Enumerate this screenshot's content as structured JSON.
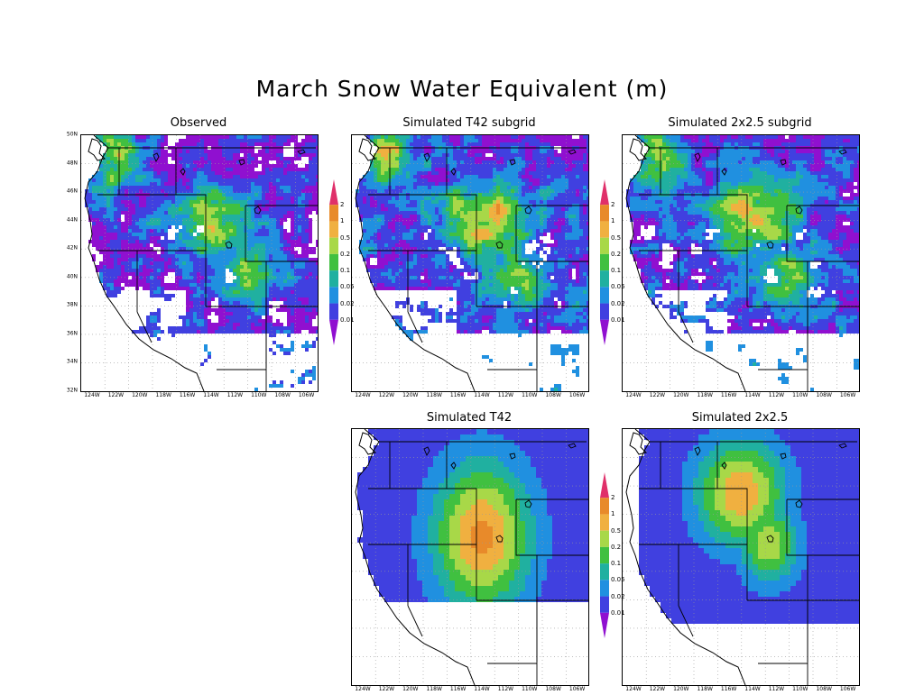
{
  "title": "March Snow Water Equivalent (m)",
  "panels": {
    "observed": {
      "title": "Observed"
    },
    "t42_subgrid": {
      "title": "Simulated T42 subgrid"
    },
    "sub2x25": {
      "title": "Simulated 2x2.5 subgrid"
    },
    "t42": {
      "title": "Simulated T42"
    },
    "c2x25": {
      "title": "Simulated 2x2.5"
    }
  },
  "axes": {
    "lat_labels": [
      "50N",
      "48N",
      "46N",
      "44N",
      "42N",
      "40N",
      "38N",
      "36N",
      "34N",
      "32N"
    ],
    "lon_labels": [
      "124W",
      "122W",
      "120W",
      "118W",
      "116W",
      "114W",
      "112W",
      "110W",
      "108W",
      "106W"
    ]
  },
  "colorbar": {
    "labels": [
      "2",
      "1",
      "0.5",
      "0.2",
      "0.1",
      "0.05",
      "0.02",
      "0.01"
    ],
    "colors": [
      "#e0306a",
      "#e88a2a",
      "#f0b040",
      "#a8d848",
      "#40c040",
      "#20b0a0",
      "#2090e0",
      "#4040e0",
      "#9010d0"
    ]
  }
}
